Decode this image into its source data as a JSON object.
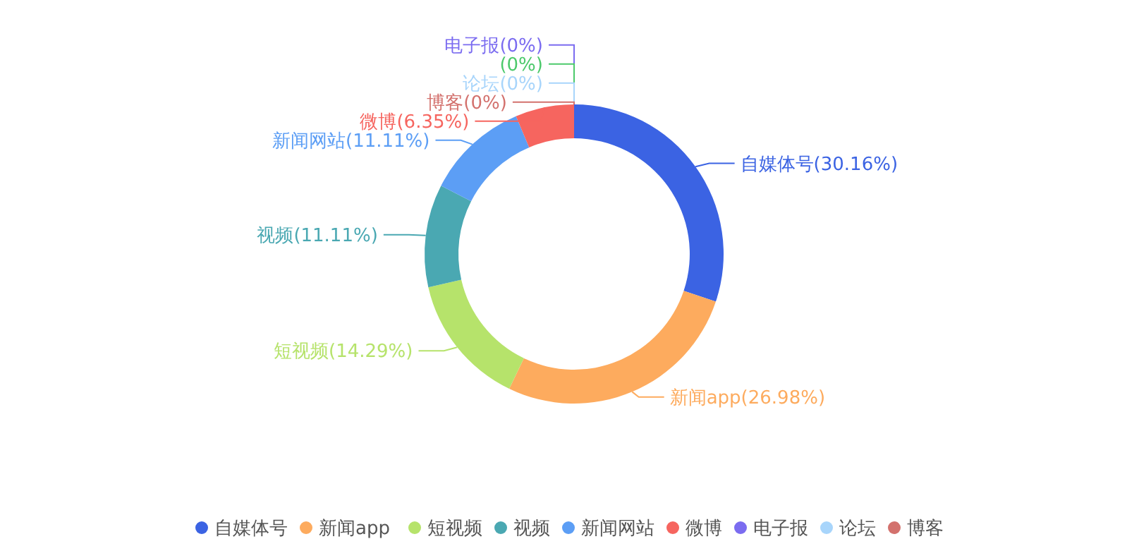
{
  "chart_data": {
    "type": "donut",
    "categories": [
      "自媒体号",
      "新闻app",
      "短视频",
      "视频",
      "新闻网站",
      "微博",
      "电子报",
      null,
      "论坛",
      "博客"
    ],
    "values": [
      30.16,
      26.98,
      14.29,
      11.11,
      11.11,
      6.35,
      0,
      0,
      0,
      0
    ],
    "value_labels": [
      "(30.16%)",
      "(26.98%)",
      "(14.29%)",
      "(11.11%)",
      "(11.11%)",
      "(6.35%)",
      "(0%)",
      "(0%)",
      "(0%)",
      "(0%)"
    ],
    "colors": [
      "#3b63e3",
      "#fdab5e",
      "#b6e36b",
      "#4aa8b2",
      "#5c9ef5",
      "#f6655f",
      "#7b6cf0",
      "#4cc96b",
      "#a8d5fb",
      "#d3716d"
    ],
    "legend": "bottom"
  }
}
